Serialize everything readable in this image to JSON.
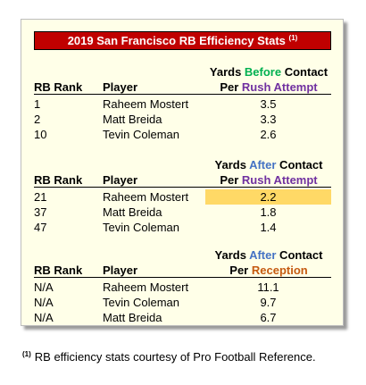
{
  "title": {
    "text": "2019 San Francisco RB Efficiency Stats",
    "note_marker": "(1)"
  },
  "column_headers": {
    "rank": "RB Rank",
    "player": "Player"
  },
  "colors": {
    "title_background": "#c00000",
    "card_background": "#ffffe8",
    "highlight": "#ffd966",
    "before_word": "#00b050",
    "after_word": "#4472c4",
    "rush_attempt_word": "#7030a0",
    "reception_word": "#c55a11"
  },
  "sections": [
    {
      "metric_line1": {
        "prefix": "Yards ",
        "emphasis": "Before",
        "suffix": " Contact"
      },
      "metric_line2": {
        "prefix": "Per ",
        "emphasis": "Rush Attempt"
      },
      "rows": [
        {
          "rank": "1",
          "player": "Raheem Mostert",
          "value": "3.5"
        },
        {
          "rank": "2",
          "player": "Matt Breida",
          "value": "3.3"
        },
        {
          "rank": "10",
          "player": "Tevin Coleman",
          "value": "2.6"
        }
      ]
    },
    {
      "metric_line1": {
        "prefix": "Yards ",
        "emphasis": "After",
        "suffix": " Contact"
      },
      "metric_line2": {
        "prefix": "Per ",
        "emphasis": "Rush Attempt"
      },
      "rows": [
        {
          "rank": "21",
          "player": "Raheem Mostert",
          "value": "2.2"
        },
        {
          "rank": "37",
          "player": "Matt Breida",
          "value": "1.8"
        },
        {
          "rank": "47",
          "player": "Tevin Coleman",
          "value": "1.4"
        }
      ]
    },
    {
      "metric_line1": {
        "prefix": "Yards ",
        "emphasis": "After",
        "suffix": " Contact"
      },
      "metric_line2": {
        "prefix": "Per ",
        "emphasis": "Reception"
      },
      "rows": [
        {
          "rank": "N/A",
          "player": "Raheem Mostert",
          "value": "11.1"
        },
        {
          "rank": "N/A",
          "player": "Tevin Coleman",
          "value": "9.7"
        },
        {
          "rank": "N/A",
          "player": "Matt Breida",
          "value": "6.7"
        }
      ]
    }
  ],
  "footnote": {
    "marker": "(1)",
    "text": "RB efficiency stats courtesy of Pro Football Reference."
  }
}
